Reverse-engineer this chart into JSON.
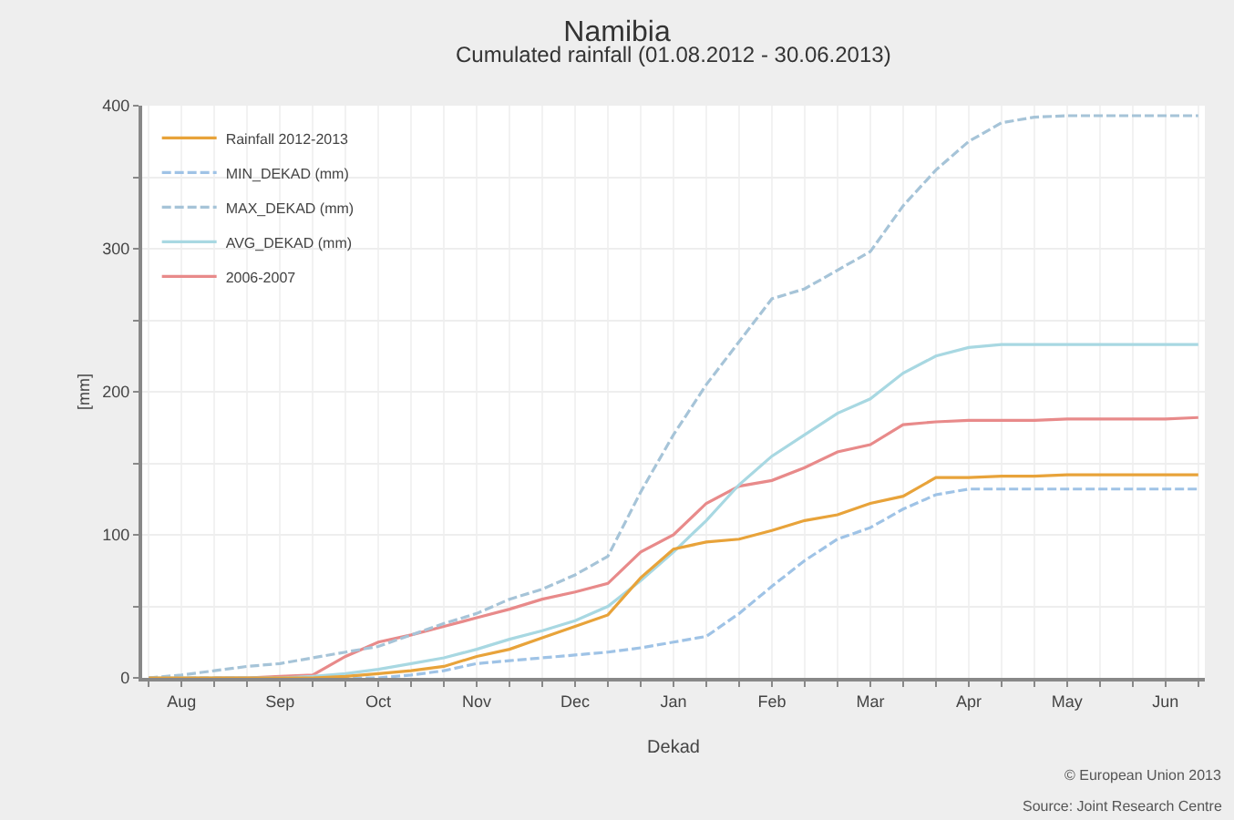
{
  "chart_data": {
    "type": "line",
    "title": "Namibia",
    "subtitle": "Cumulated rainfall (01.08.2012 - 30.06.2013)",
    "xlabel": "Dekad",
    "ylabel": "[mm]",
    "categories": [
      null,
      "Aug",
      null,
      null,
      "Sep",
      null,
      null,
      "Oct",
      null,
      null,
      "Nov",
      null,
      null,
      "Dec",
      null,
      null,
      "Jan",
      null,
      null,
      "Feb",
      null,
      null,
      "Mar",
      null,
      null,
      "Apr",
      null,
      null,
      "May",
      null,
      null,
      "Jun",
      null
    ],
    "series": [
      {
        "name": "Rainfall 2012-2013",
        "color": "#e8a33a",
        "values": [
          0,
          0,
          0,
          0,
          0,
          0,
          1,
          3,
          5,
          8,
          15,
          20,
          28,
          36,
          44,
          70,
          90,
          95,
          97,
          103,
          110,
          114,
          122,
          127,
          140,
          140,
          141,
          141,
          142,
          142,
          142,
          142,
          142
        ]
      },
      {
        "name": "MIN_DEKAD (mm)",
        "color": "#9fc3e6",
        "line_style": "dashed",
        "values": [
          0,
          0,
          0,
          0,
          0,
          0,
          0,
          0,
          2,
          5,
          10,
          12,
          14,
          16,
          18,
          21,
          25,
          29,
          45,
          64,
          82,
          97,
          105,
          118,
          128,
          132,
          132,
          132,
          132,
          132,
          132,
          132,
          132
        ]
      },
      {
        "name": "MAX_DEKAD (mm)",
        "color": "#a6c4d8",
        "line_style": "dashed",
        "values": [
          0,
          2,
          5,
          8,
          10,
          14,
          18,
          22,
          30,
          38,
          45,
          55,
          62,
          72,
          85,
          130,
          170,
          205,
          235,
          265,
          272,
          285,
          298,
          330,
          355,
          375,
          388,
          392,
          393,
          393,
          393,
          393,
          393
        ]
      },
      {
        "name": "AVG_DEKAD (mm)",
        "color": "#a8d8e2",
        "values": [
          0,
          0,
          0,
          0,
          0,
          1,
          3,
          6,
          10,
          14,
          20,
          27,
          33,
          40,
          50,
          68,
          88,
          110,
          135,
          155,
          170,
          185,
          195,
          213,
          225,
          231,
          233,
          233,
          233,
          233,
          233,
          233,
          233
        ]
      },
      {
        "name": "2006-2007",
        "color": "#e88a8a",
        "values": [
          null,
          null,
          0,
          0,
          1,
          2,
          15,
          25,
          30,
          36,
          42,
          48,
          55,
          60,
          66,
          88,
          100,
          122,
          134,
          138,
          147,
          158,
          163,
          177,
          179,
          180,
          180,
          180,
          181,
          181,
          181,
          181,
          182
        ]
      }
    ],
    "ylim": [
      0,
      400
    ],
    "yticks": [
      0,
      {
        "value": 50,
        "label": null
      },
      100,
      {
        "value": 150,
        "label": null
      },
      200,
      {
        "value": 250,
        "label": null
      },
      300,
      {
        "value": 350,
        "label": null
      },
      400
    ],
    "grid": true,
    "legend": "top left",
    "line_style": "solid",
    "annotations": [
      "© European Union 2013",
      "Source: Joint Research Centre"
    ]
  }
}
